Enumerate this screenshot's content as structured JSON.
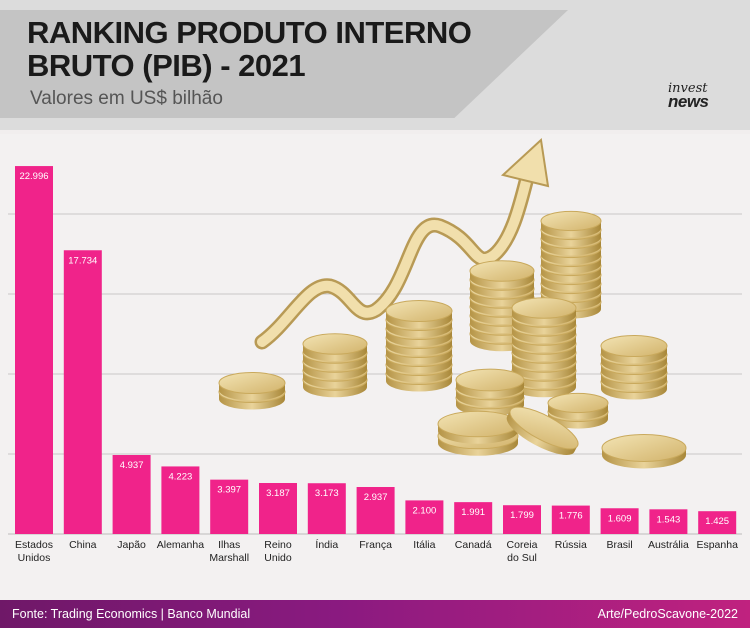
{
  "header": {
    "title": "RANKING PRODUTO INTERNO BRUTO (PIB) - 2021",
    "subtitle": "Valores em US$ bilhão"
  },
  "logo": {
    "line1": "invest",
    "line2": "news"
  },
  "footer": {
    "source": "Fonte: Trading Economics | Banco Mundial",
    "credit": "Arte/PedroScavone-2022"
  },
  "colors": {
    "bar": "#f0238a",
    "label_text": "#ffffff",
    "header_panel": "#c4c4c4",
    "footer": "#8a1a80"
  },
  "chart_data": {
    "type": "bar",
    "title": "RANKING PRODUTO INTERNO BRUTO (PIB) - 2021",
    "subtitle": "Valores em US$ bilhão",
    "categories": [
      "Estados Unidos",
      "China",
      "Japão",
      "Alemanha",
      "Ilhas Marshall",
      "Reino Unido",
      "Índia",
      "França",
      "Itália",
      "Canadá",
      "Coreia do Sul",
      "Rússia",
      "Brasil",
      "Austrália",
      "Espanha"
    ],
    "category_lines": [
      [
        "Estados",
        "Unidos"
      ],
      [
        "China"
      ],
      [
        "Japão"
      ],
      [
        "Alemanha"
      ],
      [
        "Ilhas",
        "Marshall"
      ],
      [
        "Reino",
        "Unido"
      ],
      [
        "Índia"
      ],
      [
        "França"
      ],
      [
        "Itália"
      ],
      [
        "Canadá"
      ],
      [
        "Coreia",
        "do Sul"
      ],
      [
        "Rússia"
      ],
      [
        "Brasil"
      ],
      [
        "Austrália"
      ],
      [
        "Espanha"
      ]
    ],
    "values": [
      22996,
      17734,
      4937,
      4223,
      3397,
      3187,
      3173,
      2937,
      2100,
      1991,
      1799,
      1776,
      1609,
      1543,
      1425
    ],
    "labels": [
      "22.996",
      "17.734",
      "4.937",
      "4.223",
      "3.397",
      "3.187",
      "3.173",
      "2.937",
      "2.100",
      "1.991",
      "1.799",
      "1.776",
      "1.609",
      "1.543",
      "1.425"
    ],
    "ylim": [
      0,
      25000
    ],
    "grid": true,
    "legend": "none"
  }
}
